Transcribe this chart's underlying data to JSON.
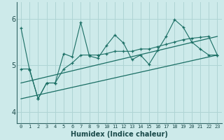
{
  "xlabel": "Humidex (Indice chaleur)",
  "bg_color": "#cdeaea",
  "grid_color": "#afd4d4",
  "line_color": "#1a6e64",
  "xlim": [
    -0.5,
    23.5
  ],
  "ylim": [
    3.75,
    6.35
  ],
  "yticks": [
    4,
    5,
    6
  ],
  "xticks": [
    0,
    1,
    2,
    3,
    4,
    5,
    6,
    7,
    8,
    9,
    10,
    11,
    12,
    13,
    14,
    15,
    16,
    17,
    18,
    19,
    20,
    21,
    22,
    23
  ],
  "series1_x": [
    0,
    1,
    2,
    3,
    4,
    5,
    6,
    7,
    8,
    9,
    10,
    11,
    12,
    13,
    14,
    15,
    16,
    17,
    18,
    19,
    20,
    21,
    22,
    23
  ],
  "series1_y": [
    5.8,
    4.9,
    4.28,
    4.62,
    4.62,
    5.25,
    5.18,
    5.92,
    5.2,
    5.15,
    5.42,
    5.65,
    5.48,
    5.12,
    5.22,
    5.02,
    5.32,
    5.62,
    5.98,
    5.82,
    5.5,
    5.35,
    5.22,
    5.22
  ],
  "series2_x": [
    0,
    1,
    2,
    3,
    4,
    5,
    6,
    7,
    8,
    9,
    10,
    11,
    12,
    13,
    14,
    15,
    16,
    17,
    18,
    19,
    20,
    21,
    22,
    23
  ],
  "series2_y": [
    4.92,
    4.92,
    4.28,
    4.62,
    4.62,
    4.92,
    5.05,
    5.22,
    5.22,
    5.22,
    5.25,
    5.3,
    5.3,
    5.3,
    5.35,
    5.35,
    5.4,
    5.45,
    5.5,
    5.55,
    5.58,
    5.6,
    5.62,
    5.22
  ],
  "series3_x": [
    0,
    23
  ],
  "series3_y": [
    4.28,
    5.22
  ],
  "series4_x": [
    0,
    23
  ],
  "series4_y": [
    4.62,
    5.62
  ]
}
